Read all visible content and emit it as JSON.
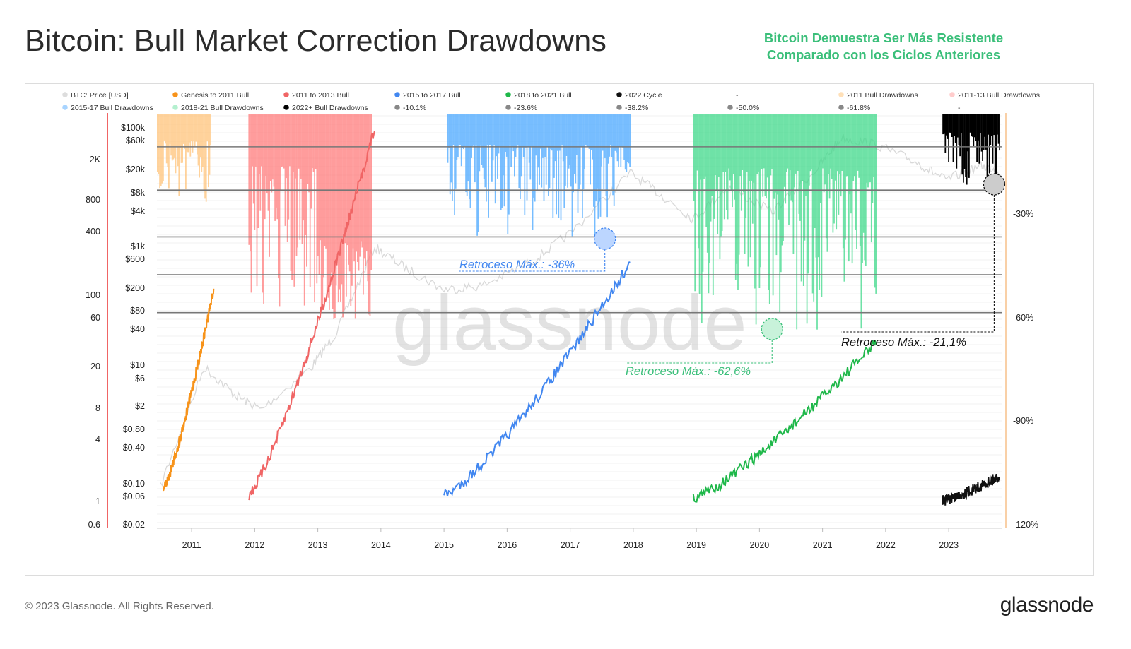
{
  "header": {
    "title": "Bitcoin: Bull Market Correction Drawdowns",
    "subtitle_line1": "Bitcoin Demuestra Ser Más Resistente",
    "subtitle_line2": "Comparado con los Ciclos Anteriores"
  },
  "footer": {
    "copyright": "© 2023 Glassnode. All Rights Reserved.",
    "logo": "glassnode"
  },
  "watermark": "glassnode",
  "colors": {
    "price": "#d9d9d9",
    "genesis": "#f7931a",
    "c2011": "#f06565",
    "c2015": "#4287f0",
    "c2018": "#1fb84a",
    "c2022": "#111111",
    "dd2011": "#ffc47a",
    "dd2011_13": "#ff7b7b",
    "dd2015": "#4aa8ff",
    "dd2018": "#3fd98a",
    "dd2022": "#000000",
    "fib": "#777777",
    "axis_left": "#f06565",
    "axis_right": "#f7c08a"
  },
  "chart_data": {
    "type": "line",
    "title": "Bitcoin: Bull Market Correction Drawdowns",
    "legend": [
      {
        "label": "BTC: Price [USD]",
        "color": "#dddddd"
      },
      {
        "label": "Genesis to 2011 Bull",
        "color": "#f7931a"
      },
      {
        "label": "2011 to 2013 Bull",
        "color": "#f06565"
      },
      {
        "label": "2015 to 2017 Bull",
        "color": "#4287f0"
      },
      {
        "label": "2018 to 2021 Bull",
        "color": "#1fb84a"
      },
      {
        "label": "2022 Cycle+",
        "color": "#111111"
      },
      {
        "label": "-",
        "color": ""
      },
      {
        "label": "2011 Bull Drawdowns",
        "color": "#ffe0b8"
      },
      {
        "label": "2011-13 Bull Drawdowns",
        "color": "#ffcccc"
      },
      {
        "label": "2015-17 Bull Drawdowns",
        "color": "#a8d4ff"
      },
      {
        "label": "2018-21 Bull Drawdowns",
        "color": "#b4f0cf"
      },
      {
        "label": "2022+ Bull Drawdowns",
        "color": "#000000"
      },
      {
        "label": "-10.1%",
        "color": "#888888"
      },
      {
        "label": "-23.6%",
        "color": "#888888"
      },
      {
        "label": "-38.2%",
        "color": "#888888"
      },
      {
        "label": "-50.0%",
        "color": "#888888"
      },
      {
        "label": "-61.8%",
        "color": "#888888"
      },
      {
        "label": "-",
        "color": ""
      }
    ],
    "x_ticks": [
      "2011",
      "2012",
      "2013",
      "2014",
      "2015",
      "2016",
      "2017",
      "2018",
      "2019",
      "2020",
      "2021",
      "2022",
      "2023"
    ],
    "y_left_outer_ticks": [
      "2K",
      "800",
      "400",
      "100",
      "60",
      "20",
      "8",
      "4",
      "1",
      "0.6"
    ],
    "y_left_inner_ticks": [
      "$100k",
      "$60k",
      "$20k",
      "$8k",
      "$4k",
      "$1k",
      "$600",
      "$200",
      "$80",
      "$40",
      "$10",
      "$6",
      "$2",
      "$0.80",
      "$0.40",
      "$0.10",
      "$0.06",
      "$0.02"
    ],
    "y_right_ticks": [
      "-30%",
      "-60%",
      "-90%",
      "-120%"
    ],
    "fib_levels": [
      -10.1,
      -23.6,
      -38.2,
      -50.0,
      -61.8
    ],
    "cycles": [
      {
        "name": "Genesis to 2011 Bull",
        "start": 2010.55,
        "end": 2011.35,
        "y_start": 1.2,
        "y_end": 70,
        "dd_min": -30
      },
      {
        "name": "2011 to 2013 Bull",
        "start": 2011.9,
        "end": 2013.9,
        "y_start": 1.05,
        "y_end": 1850,
        "dd_min": -60
      },
      {
        "name": "2015 to 2017 Bull",
        "start": 2015.0,
        "end": 2017.95,
        "y_start": 1.05,
        "y_end": 120,
        "dd_min": -36
      },
      {
        "name": "2018 to 2021 Bull",
        "start": 2018.95,
        "end": 2021.85,
        "y_start": 1.0,
        "y_end": 24,
        "dd_min": -62.6
      },
      {
        "name": "2022 Cycle+",
        "start": 2022.9,
        "end": 2023.8,
        "y_start": 0.95,
        "y_end": 1.55,
        "dd_min": -21.1
      }
    ],
    "annotations": [
      {
        "text": "Retroceso Máx.: -36%",
        "color": "#4287f0"
      },
      {
        "text": "Retroceso Máx.: -62,6%",
        "color": "#3bbf7a"
      },
      {
        "text": "Retroceso Máx.: -21,1%",
        "color": "#111111"
      }
    ],
    "y_scale": "log"
  }
}
